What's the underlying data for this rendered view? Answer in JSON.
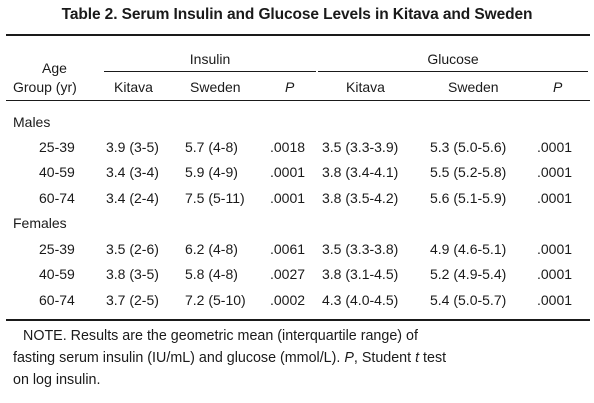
{
  "title": "Table 2.  Serum Insulin and Glucose Levels in Kitava and Sweden",
  "header": {
    "age_line1": "Age",
    "age_line2": "Group (yr)",
    "insulin": "Insulin",
    "glucose": "Glucose",
    "kitava": "Kitava",
    "sweden": "Sweden",
    "p": "P"
  },
  "sections": [
    {
      "label": "Males",
      "rows": [
        {
          "age": "25-39",
          "ins_k": "3.9 (3-5)",
          "ins_s": "5.7 (4-8)",
          "ins_p": ".0018",
          "glu_k": "3.5 (3.3-3.9)",
          "glu_s": "5.3 (5.0-5.6)",
          "glu_p": ".0001"
        },
        {
          "age": "40-59",
          "ins_k": "3.4 (3-4)",
          "ins_s": "5.9 (4-9)",
          "ins_p": ".0001",
          "glu_k": "3.8 (3.4-4.1)",
          "glu_s": "5.5 (5.2-5.8)",
          "glu_p": ".0001"
        },
        {
          "age": "60-74",
          "ins_k": "3.4 (2-4)",
          "ins_s": "7.5 (5-11)",
          "ins_p": ".0001",
          "glu_k": "3.8 (3.5-4.2)",
          "glu_s": "5.6 (5.1-5.9)",
          "glu_p": ".0001"
        }
      ]
    },
    {
      "label": "Females",
      "rows": [
        {
          "age": "25-39",
          "ins_k": "3.5 (2-6)",
          "ins_s": "6.2 (4-8)",
          "ins_p": ".0061",
          "glu_k": "3.5 (3.3-3.8)",
          "glu_s": "4.9 (4.6-5.1)",
          "glu_p": ".0001"
        },
        {
          "age": "40-59",
          "ins_k": "3.8 (3-5)",
          "ins_s": "5.8 (4-8)",
          "ins_p": ".0027",
          "glu_k": "3.8 (3.1-4.5)",
          "glu_s": "5.2 (4.9-5.4)",
          "glu_p": ".0001"
        },
        {
          "age": "60-74",
          "ins_k": "3.7 (2-5)",
          "ins_s": "7.2 (5-10)",
          "ins_p": ".0002",
          "glu_k": "4.3 (4.0-4.5)",
          "glu_s": "5.4 (5.0-5.7)",
          "glu_p": ".0001"
        }
      ]
    }
  ],
  "note": {
    "line1": "NOTE. Results are the geometric mean (interquartile range) of",
    "line2": "fasting serum insulin (IU/mL) and glucose (mmol/L). P, Student t test",
    "line3": "on log insulin."
  }
}
